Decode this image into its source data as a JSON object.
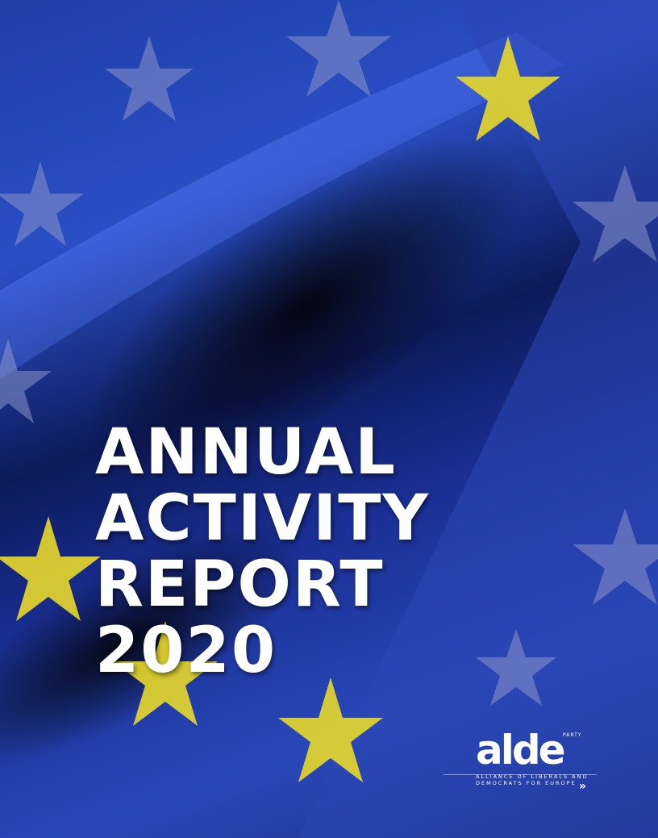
{
  "cover": {
    "title_lines": [
      "ANNUAL",
      "ACTIVITY",
      "REPORT",
      "2020"
    ],
    "colors": {
      "background": "#2342b0",
      "star_yellow": "#e8d82a",
      "star_faded": "#7f86c0",
      "title": "#ffffff"
    }
  },
  "logo": {
    "mark": "alde",
    "party": "PARTY",
    "subtitle_lines": [
      "ALLIANCE OF LIBERALS AND",
      "DEMOCRATS FOR EUROPE"
    ],
    "icon": "double-chevron-right-icon"
  }
}
